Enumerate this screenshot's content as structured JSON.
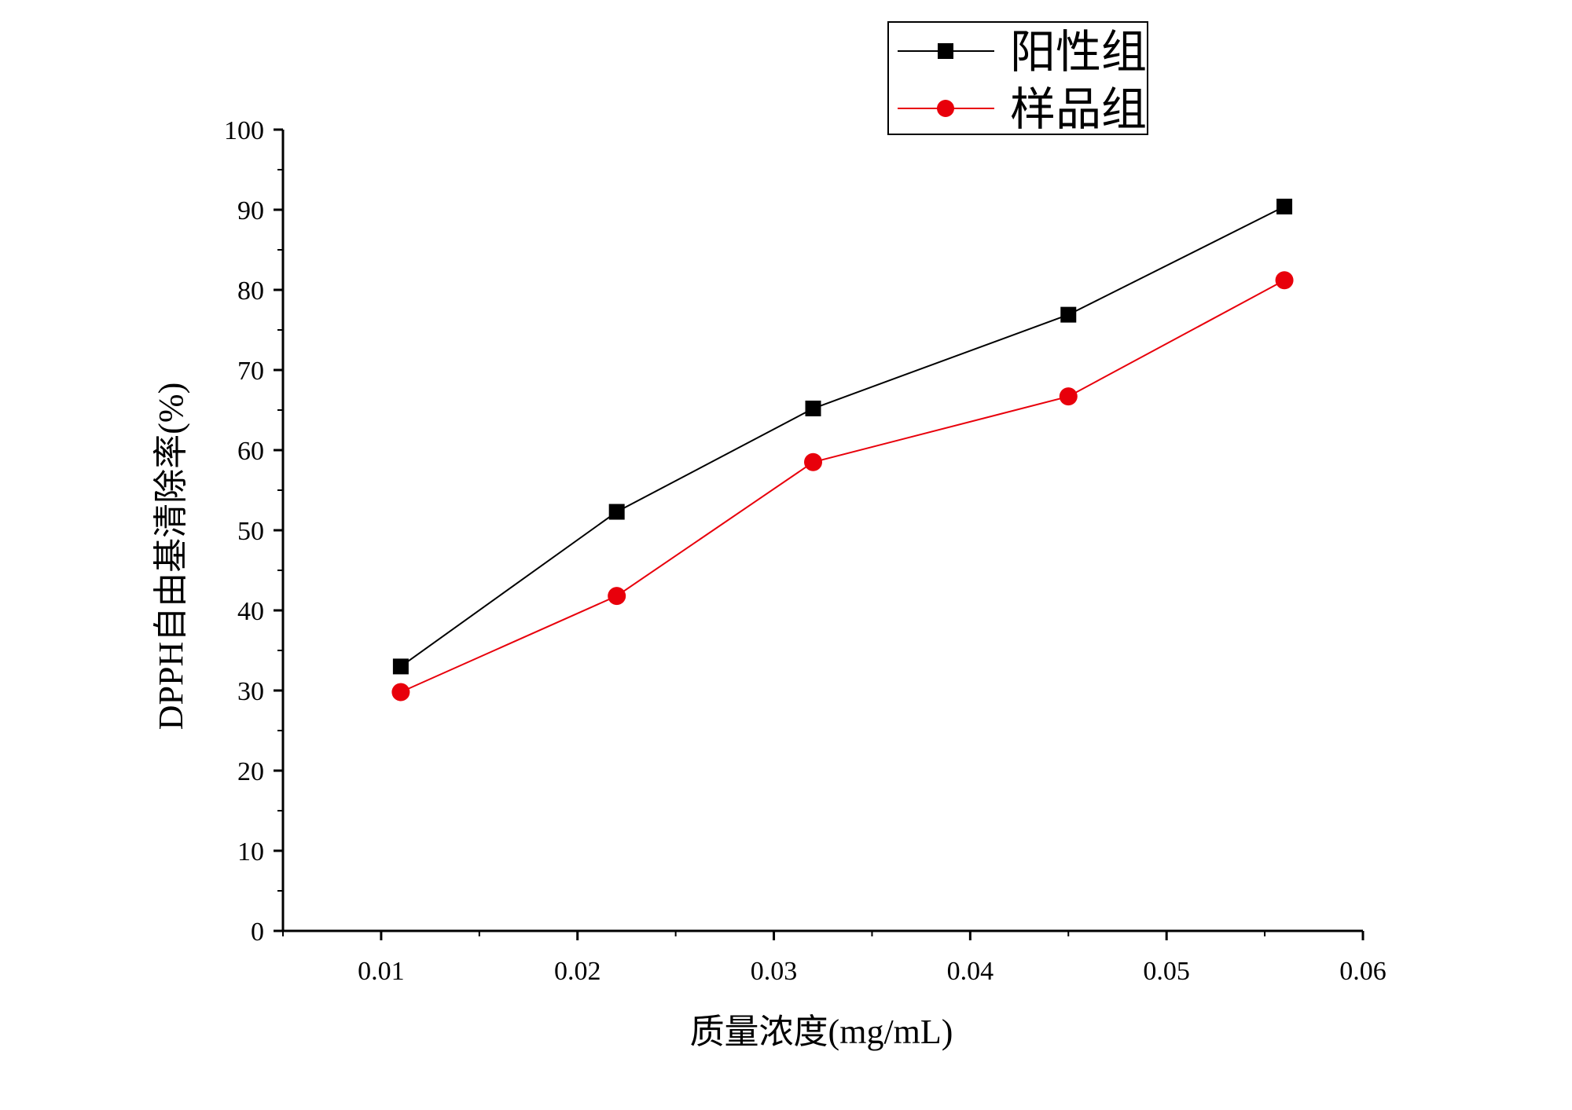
{
  "chart_data": {
    "type": "line",
    "xlabel": "质量浓度(mg/mL)",
    "ylabel": "DPPH自由基清除率(%)",
    "xlim": [
      0.005,
      0.06
    ],
    "ylim": [
      0,
      100
    ],
    "x_ticks": [
      "0.01",
      "0.02",
      "0.03",
      "0.04",
      "0.05",
      "0.06"
    ],
    "y_ticks": [
      "0",
      "10",
      "20",
      "30",
      "40",
      "50",
      "60",
      "70",
      "80",
      "90",
      "100"
    ],
    "x": [
      0.011,
      0.022,
      0.032,
      0.045,
      0.056
    ],
    "series": [
      {
        "name": "阳性组",
        "color": "#000000",
        "marker": "square",
        "values": [
          33.0,
          52.3,
          65.2,
          76.9,
          90.4
        ]
      },
      {
        "name": "样品组",
        "color": "#e8000b",
        "marker": "circle",
        "values": [
          29.8,
          41.8,
          58.5,
          66.7,
          81.2
        ]
      }
    ],
    "legend_position": "top-right",
    "grid": false
  }
}
